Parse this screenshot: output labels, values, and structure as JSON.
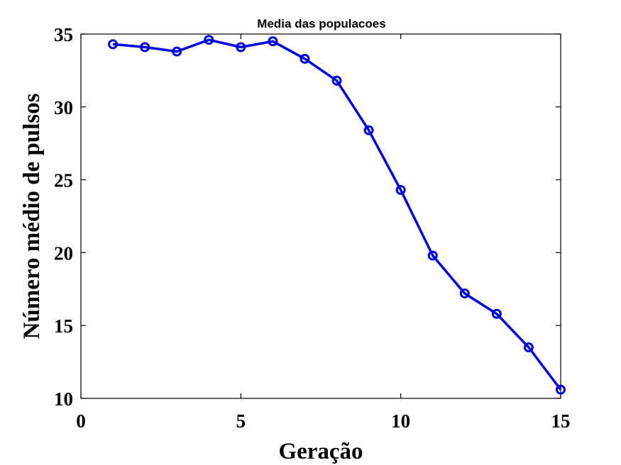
{
  "chart_data": {
    "type": "line",
    "title": "Media das populacoes",
    "xlabel": "Geração",
    "ylabel": "Número médio de pulsos",
    "xlim": [
      0,
      15
    ],
    "ylim": [
      10,
      35
    ],
    "xticks": [
      0,
      5,
      10,
      15
    ],
    "yticks": [
      10,
      15,
      20,
      25,
      30,
      35
    ],
    "grid": false,
    "series": [
      {
        "color": "#0000dd",
        "marker": "circle",
        "x": [
          1,
          2,
          3,
          4,
          5,
          6,
          7,
          8,
          9,
          10,
          11,
          12,
          13,
          14,
          15
        ],
        "y": [
          34.3,
          34.1,
          33.8,
          34.6,
          34.1,
          34.5,
          33.3,
          31.8,
          28.4,
          24.3,
          19.8,
          17.2,
          15.8,
          13.5,
          10.6
        ]
      }
    ]
  }
}
